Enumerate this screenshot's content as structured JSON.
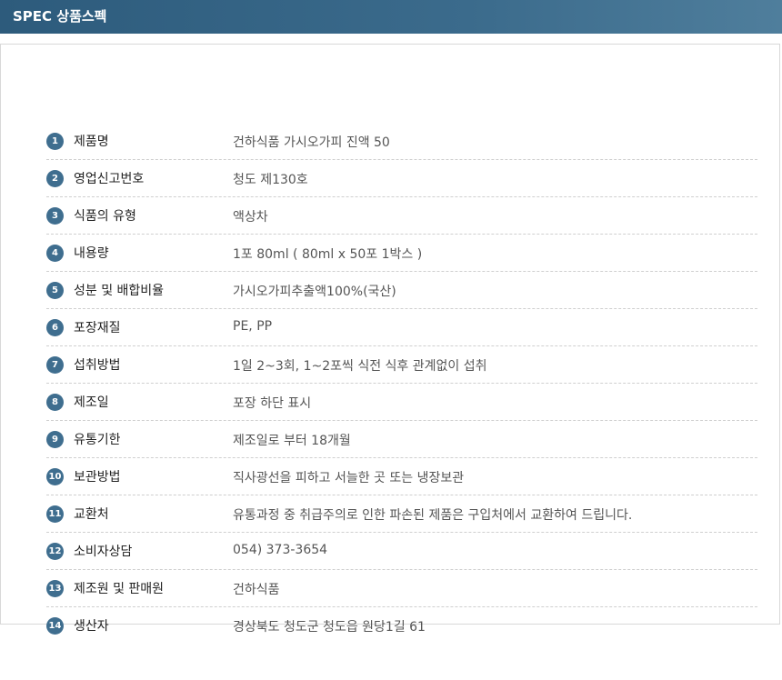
{
  "header": {
    "title": "SPEC 상품스펙"
  },
  "colors": {
    "header": "#2d5b7c",
    "badge": "#3f6e8f"
  },
  "specs": [
    {
      "n": "1",
      "label": "제품명",
      "value": "건하식품 가시오가피 진액 50"
    },
    {
      "n": "2",
      "label": "영업신고번호",
      "value": "청도 제130호"
    },
    {
      "n": "3",
      "label": "식품의 유형",
      "value": "액상차"
    },
    {
      "n": "4",
      "label": "내용량",
      "value": "1포 80ml ( 80ml x 50포 1박스 )"
    },
    {
      "n": "5",
      "label": "성분 및 배합비율",
      "value": "가시오가피추출액100%(국산)"
    },
    {
      "n": "6",
      "label": "포장재질",
      "value": "PE, PP"
    },
    {
      "n": "7",
      "label": "섭취방법",
      "value": "1일 2~3회, 1~2포씩 식전 식후 관계없이 섭취"
    },
    {
      "n": "8",
      "label": "제조일",
      "value": "포장 하단 표시"
    },
    {
      "n": "9",
      "label": "유통기한",
      "value": "제조일로 부터 18개월"
    },
    {
      "n": "10",
      "label": "보관방법",
      "value": "직사광선을 피하고 서늘한 곳 또는 냉장보관"
    },
    {
      "n": "11",
      "label": "교환처",
      "value": "유통과정 중 취급주의로 인한 파손된 제품은 구입처에서 교환하여 드립니다."
    },
    {
      "n": "12",
      "label": "소비자상담",
      "value": "054) 373-3654"
    },
    {
      "n": "13",
      "label": "제조원 및 판매원",
      "value": "건하식품"
    },
    {
      "n": "14",
      "label": "생산자",
      "value": "경상북도 청도군 청도읍 원당1길 61"
    }
  ]
}
